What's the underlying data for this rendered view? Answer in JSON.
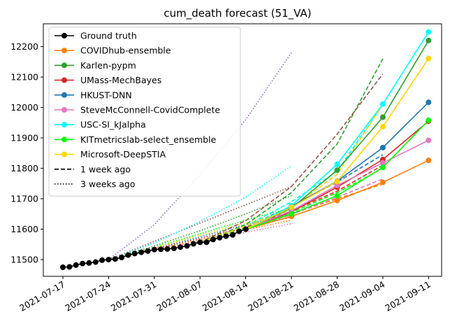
{
  "chart_data": {
    "type": "line",
    "title": "cum_death forecast (51_VA)",
    "xlabel": "",
    "ylabel": "",
    "xlim": [
      "2021-07-14",
      "2021-09-13"
    ],
    "ylim": [
      11445,
      12275
    ],
    "x_ticks": [
      "2021-07-17",
      "2021-07-24",
      "2021-07-31",
      "2021-08-07",
      "2021-08-14",
      "2021-08-21",
      "2021-08-28",
      "2021-09-04",
      "2021-09-11"
    ],
    "y_ticks": [
      11500,
      11600,
      11700,
      11800,
      11900,
      12000,
      12100,
      12200
    ],
    "grid": false,
    "legend_position": "upper-left",
    "legend": [
      {
        "label": "Ground truth",
        "color": "#000000",
        "style": "solid",
        "marker": true
      },
      {
        "label": "COVIDhub-ensemble",
        "color": "#ff7f0e",
        "style": "solid",
        "marker": true
      },
      {
        "label": "Karlen-pypm",
        "color": "#2ca02c",
        "style": "solid",
        "marker": true
      },
      {
        "label": "UMass-MechBayes",
        "color": "#d62728",
        "style": "solid",
        "marker": true
      },
      {
        "label": "HKUST-DNN",
        "color": "#1f77b4",
        "style": "solid",
        "marker": true
      },
      {
        "label": "SteveMcConnell-CovidComplete",
        "color": "#e377c2",
        "style": "solid",
        "marker": true
      },
      {
        "label": "USC-SI_kJalpha",
        "color": "#00ffff",
        "style": "solid",
        "marker": true
      },
      {
        "label": "KITmetricslab-select_ensemble",
        "color": "#00ff00",
        "style": "solid",
        "marker": true
      },
      {
        "label": "Microsoft-DeepSTIA",
        "color": "#ffd700",
        "style": "solid",
        "marker": true
      },
      {
        "label": "1 week ago",
        "color": "#000000",
        "style": "dashed",
        "marker": false
      },
      {
        "label": "3 weeks ago",
        "color": "#000000",
        "style": "dotted",
        "marker": false
      }
    ],
    "ground_truth": {
      "name": "Ground truth",
      "color": "#000000",
      "x": [
        "2021-07-17",
        "2021-07-18",
        "2021-07-19",
        "2021-07-20",
        "2021-07-21",
        "2021-07-22",
        "2021-07-23",
        "2021-07-24",
        "2021-07-25",
        "2021-07-26",
        "2021-07-27",
        "2021-07-28",
        "2021-07-29",
        "2021-07-30",
        "2021-07-31",
        "2021-08-01",
        "2021-08-02",
        "2021-08-03",
        "2021-08-04",
        "2021-08-05",
        "2021-08-06",
        "2021-08-07",
        "2021-08-08",
        "2021-08-09",
        "2021-08-10",
        "2021-08-11",
        "2021-08-12",
        "2021-08-13",
        "2021-08-14"
      ],
      "y": [
        11475,
        11476,
        11482,
        11487,
        11489,
        11492,
        11498,
        11500,
        11502,
        11507,
        11515,
        11520,
        11524,
        11528,
        11533,
        11534,
        11535,
        11537,
        11541,
        11545,
        11552,
        11557,
        11557,
        11566,
        11572,
        11577,
        11581,
        11593,
        11600
      ]
    },
    "series": [
      {
        "name": "COVIDhub-ensemble",
        "color": "#ff7f0e",
        "style": "solid",
        "marker": true,
        "x": [
          "2021-08-14",
          "2021-08-21",
          "2021-08-28",
          "2021-09-04",
          "2021-09-11"
        ],
        "y": [
          11600,
          11642,
          11694,
          11754,
          11826
        ]
      },
      {
        "name": "Karlen-pypm",
        "color": "#2ca02c",
        "style": "solid",
        "marker": true,
        "x": [
          "2021-08-14",
          "2021-08-21",
          "2021-08-28",
          "2021-09-04",
          "2021-09-11"
        ],
        "y": [
          11600,
          11669,
          11794,
          11968,
          12220
        ]
      },
      {
        "name": "UMass-MechBayes",
        "color": "#d62728",
        "style": "solid",
        "marker": true,
        "x": [
          "2021-08-14",
          "2021-08-21",
          "2021-08-28",
          "2021-09-04",
          "2021-09-11"
        ],
        "y": [
          11600,
          11657,
          11738,
          11829,
          11955
        ]
      },
      {
        "name": "HKUST-DNN",
        "color": "#1f77b4",
        "style": "solid",
        "marker": true,
        "x": [
          "2021-08-14",
          "2021-08-21",
          "2021-08-28",
          "2021-09-04",
          "2021-09-11"
        ],
        "y": [
          11600,
          11675,
          11758,
          11868,
          12017
        ]
      },
      {
        "name": "SteveMcConnell-CovidComplete",
        "color": "#e377c2",
        "style": "solid",
        "marker": true,
        "x": [
          "2021-08-14",
          "2021-08-21",
          "2021-08-28",
          "2021-09-04",
          "2021-09-11"
        ],
        "y": [
          11600,
          11660,
          11744,
          11818,
          11892
        ]
      },
      {
        "name": "USC-SI_kJalpha",
        "color": "#00ffff",
        "style": "solid",
        "marker": true,
        "x": [
          "2021-08-14",
          "2021-08-21",
          "2021-08-28",
          "2021-09-04",
          "2021-09-11"
        ],
        "y": [
          11600,
          11677,
          11813,
          12011,
          12248
        ]
      },
      {
        "name": "KITmetricslab-select_ensemble",
        "color": "#00ff00",
        "style": "solid",
        "marker": true,
        "x": [
          "2021-08-14",
          "2021-08-21",
          "2021-08-28",
          "2021-09-04",
          "2021-09-11"
        ],
        "y": [
          11600,
          11650,
          11710,
          11803,
          11958
        ]
      },
      {
        "name": "Microsoft-DeepSTIA",
        "color": "#ffd700",
        "style": "solid",
        "marker": true,
        "x": [
          "2021-08-14",
          "2021-08-21",
          "2021-08-28",
          "2021-09-04",
          "2021-09-11"
        ],
        "y": [
          11600,
          11672,
          11757,
          11937,
          12161
        ]
      },
      {
        "color": "#ff7f0e",
        "style": "dashed",
        "x": [
          "2021-08-07",
          "2021-08-14",
          "2021-08-21",
          "2021-08-28",
          "2021-09-04"
        ],
        "y": [
          11557,
          11600,
          11650,
          11700,
          11748
        ]
      },
      {
        "color": "#2ca02c",
        "style": "dashed",
        "x": [
          "2021-08-07",
          "2021-08-14",
          "2021-08-21",
          "2021-08-28",
          "2021-09-04"
        ],
        "y": [
          11557,
          11615,
          11720,
          11880,
          12160
        ]
      },
      {
        "color": "#8c564b",
        "style": "dashed",
        "x": [
          "2021-08-07",
          "2021-08-14",
          "2021-08-21",
          "2021-08-28",
          "2021-09-04"
        ],
        "y": [
          11557,
          11628,
          11740,
          11912,
          12110
        ]
      },
      {
        "color": "#d62728",
        "style": "dashed",
        "x": [
          "2021-08-07",
          "2021-08-14",
          "2021-08-21",
          "2021-08-28",
          "2021-09-04"
        ],
        "y": [
          11557,
          11605,
          11660,
          11725,
          11810
        ]
      },
      {
        "color": "#1f77b4",
        "style": "dashed",
        "x": [
          "2021-08-07",
          "2021-08-14",
          "2021-08-21",
          "2021-08-28",
          "2021-09-04"
        ],
        "y": [
          11557,
          11608,
          11675,
          11755,
          11845
        ]
      },
      {
        "color": "#e377c2",
        "style": "dashed",
        "x": [
          "2021-08-07",
          "2021-08-14",
          "2021-08-21",
          "2021-08-28",
          "2021-09-04"
        ],
        "y": [
          11557,
          11600,
          11648,
          11705,
          11765
        ]
      },
      {
        "color": "#00ffff",
        "style": "dashed",
        "x": [
          "2021-08-07",
          "2021-08-14",
          "2021-08-21",
          "2021-08-28",
          "2021-09-04"
        ],
        "y": [
          11557,
          11610,
          11690,
          11790,
          12010
        ]
      },
      {
        "color": "#00ff00",
        "style": "dashed",
        "x": [
          "2021-08-07",
          "2021-08-14",
          "2021-08-21",
          "2021-08-28",
          "2021-09-04"
        ],
        "y": [
          11557,
          11603,
          11655,
          11720,
          11800
        ]
      },
      {
        "color": "#ffd700",
        "style": "dashed",
        "x": [
          "2021-08-07",
          "2021-08-14",
          "2021-08-21",
          "2021-08-28",
          "2021-09-04"
        ],
        "y": [
          11557,
          11610,
          11670,
          11780,
          12010
        ]
      },
      {
        "color": "#9467bd",
        "style": "dotted",
        "x": [
          "2021-07-24",
          "2021-07-31",
          "2021-08-07",
          "2021-08-14",
          "2021-08-21"
        ],
        "y": [
          11500,
          11615,
          11780,
          11960,
          12180
        ]
      },
      {
        "color": "#8c564b",
        "style": "dotted",
        "x": [
          "2021-07-24",
          "2021-07-31",
          "2021-08-07",
          "2021-08-14",
          "2021-08-21"
        ],
        "y": [
          11500,
          11560,
          11620,
          11680,
          11740
        ]
      },
      {
        "color": "#00ffff",
        "style": "dotted",
        "x": [
          "2021-07-24",
          "2021-07-31",
          "2021-08-07",
          "2021-08-14",
          "2021-08-21"
        ],
        "y": [
          11500,
          11555,
          11625,
          11705,
          11808
        ]
      },
      {
        "color": "#2ca02c",
        "style": "dotted",
        "x": [
          "2021-07-24",
          "2021-07-31",
          "2021-08-07",
          "2021-08-14",
          "2021-08-21"
        ],
        "y": [
          11500,
          11545,
          11595,
          11650,
          11710
        ]
      },
      {
        "color": "#00ff00",
        "style": "dotted",
        "x": [
          "2021-07-24",
          "2021-07-31",
          "2021-08-07",
          "2021-08-14",
          "2021-08-21"
        ],
        "y": [
          11500,
          11540,
          11585,
          11630,
          11670
        ]
      },
      {
        "color": "#ffd700",
        "style": "dotted",
        "x": [
          "2021-07-24",
          "2021-07-31",
          "2021-08-07",
          "2021-08-14",
          "2021-08-21"
        ],
        "y": [
          11500,
          11538,
          11580,
          11620,
          11660
        ]
      },
      {
        "color": "#1f77b4",
        "style": "dotted",
        "x": [
          "2021-07-24",
          "2021-07-31",
          "2021-08-07",
          "2021-08-14",
          "2021-08-21"
        ],
        "y": [
          11500,
          11535,
          11575,
          11615,
          11650
        ]
      },
      {
        "color": "#d62728",
        "style": "dotted",
        "x": [
          "2021-07-24",
          "2021-07-31",
          "2021-08-07",
          "2021-08-14",
          "2021-08-21"
        ],
        "y": [
          11500,
          11534,
          11570,
          11605,
          11640
        ]
      },
      {
        "color": "#e377c2",
        "style": "dotted",
        "x": [
          "2021-07-24",
          "2021-07-31",
          "2021-08-07",
          "2021-08-14",
          "2021-08-21"
        ],
        "y": [
          11500,
          11530,
          11560,
          11590,
          11618
        ]
      },
      {
        "color": "#ff7f0e",
        "style": "dotted",
        "x": [
          "2021-07-24",
          "2021-07-31",
          "2021-08-07",
          "2021-08-14",
          "2021-08-21"
        ],
        "y": [
          11500,
          11532,
          11565,
          11598,
          11630
        ]
      }
    ]
  }
}
